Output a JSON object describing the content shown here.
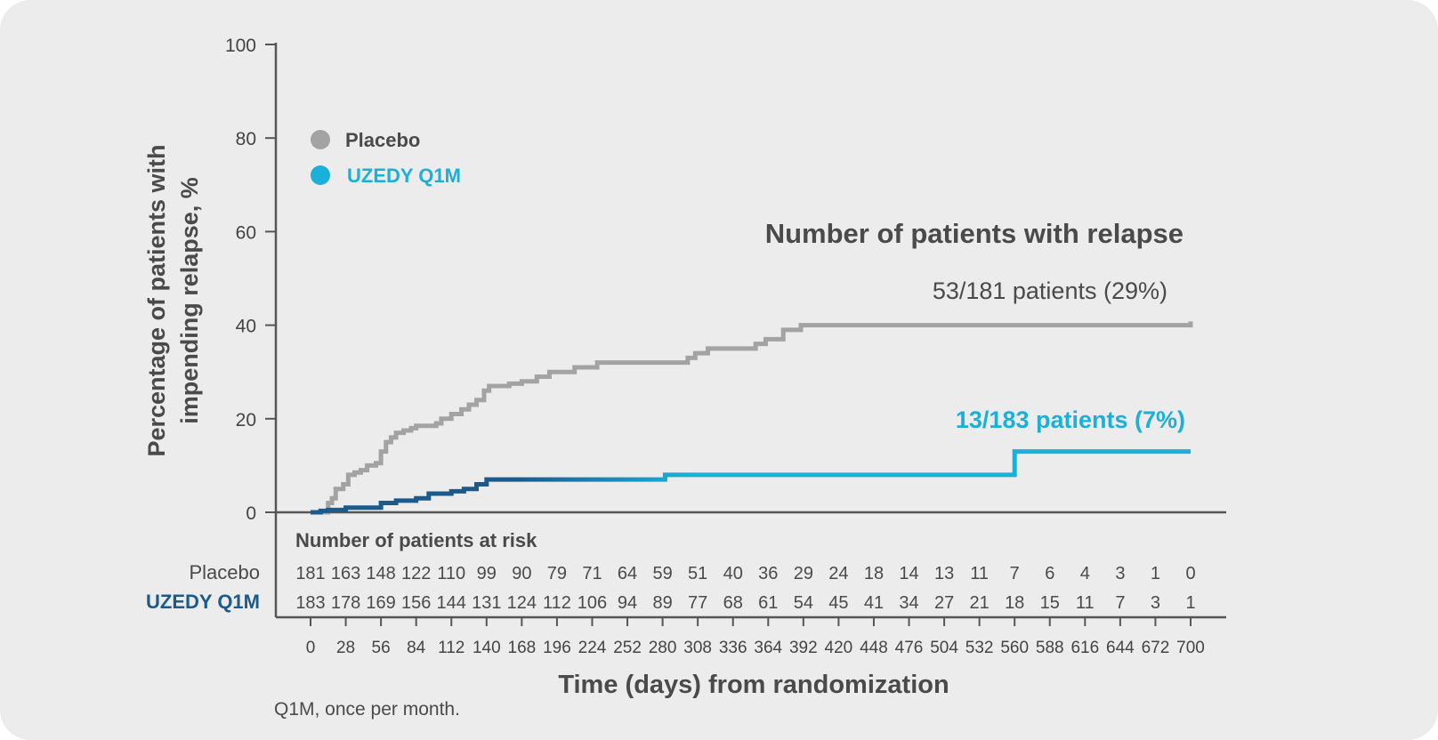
{
  "chart_data": {
    "type": "line",
    "subtype": "kaplan-meier step curve",
    "ylabel_line1": "Percentage of patients with",
    "ylabel_line2": "impending relapse, %",
    "xlabel": "Time (days) from randomization",
    "ylim": [
      0,
      100
    ],
    "yticks": [
      0,
      20,
      40,
      60,
      80,
      100
    ],
    "xlim": [
      0,
      700
    ],
    "xticks": [
      0,
      28,
      56,
      84,
      112,
      140,
      168,
      196,
      224,
      252,
      280,
      308,
      336,
      364,
      392,
      420,
      448,
      476,
      504,
      532,
      560,
      588,
      616,
      644,
      672,
      700
    ],
    "legend_placement": "top-left",
    "colors": {
      "placebo": "#a3a3a3",
      "uzedy": "#1ab0da",
      "uzedy_dark": "#1d5a8c",
      "axis": "#555555",
      "text": "#4a4a4a"
    },
    "series": [
      {
        "name": "Placebo",
        "steps": [
          [
            0,
            0
          ],
          [
            14,
            2
          ],
          [
            17,
            3
          ],
          [
            20,
            5
          ],
          [
            26,
            6
          ],
          [
            30,
            8
          ],
          [
            35,
            8.5
          ],
          [
            40,
            9
          ],
          [
            45,
            10
          ],
          [
            52,
            10.5
          ],
          [
            56,
            13
          ],
          [
            60,
            15
          ],
          [
            64,
            16
          ],
          [
            68,
            17
          ],
          [
            74,
            17.5
          ],
          [
            80,
            18
          ],
          [
            84,
            18.5
          ],
          [
            100,
            19
          ],
          [
            104,
            20
          ],
          [
            112,
            21
          ],
          [
            120,
            22
          ],
          [
            126,
            23
          ],
          [
            132,
            24
          ],
          [
            138,
            26
          ],
          [
            142,
            27
          ],
          [
            158,
            27.5
          ],
          [
            168,
            28
          ],
          [
            180,
            29
          ],
          [
            190,
            30
          ],
          [
            210,
            31
          ],
          [
            228,
            32
          ],
          [
            300,
            33
          ],
          [
            306,
            34
          ],
          [
            316,
            35
          ],
          [
            354,
            36
          ],
          [
            362,
            37
          ],
          [
            376,
            39
          ],
          [
            390,
            40
          ],
          [
            700,
            40.8
          ]
        ]
      },
      {
        "name": "UZEDY Q1M",
        "steps": [
          [
            0,
            0
          ],
          [
            8,
            0.3
          ],
          [
            14,
            0.5
          ],
          [
            28,
            1
          ],
          [
            56,
            2
          ],
          [
            68,
            2.5
          ],
          [
            84,
            3
          ],
          [
            94,
            4
          ],
          [
            112,
            4.5
          ],
          [
            122,
            5
          ],
          [
            132,
            6
          ],
          [
            140,
            7
          ],
          [
            280,
            7
          ],
          [
            282,
            8
          ],
          [
            557,
            8
          ],
          [
            560,
            13
          ],
          [
            700,
            13
          ]
        ]
      }
    ],
    "annotations": {
      "heading": "Number of patients with relapse",
      "placebo_result": "53/181 patients (29%)",
      "uzedy_result": "13/183 patients (7%)"
    },
    "risk_table": {
      "title": "Number of patients at risk",
      "rows": [
        {
          "label": "Placebo",
          "values": [
            "181",
            "163",
            "148",
            "122",
            "110",
            "99",
            "90",
            "79",
            "71",
            "64",
            "59",
            "51",
            "40",
            "36",
            "29",
            "24",
            "18",
            "14",
            "13",
            "11",
            "7",
            "6",
            "4",
            "3",
            "1",
            "0"
          ]
        },
        {
          "label": "UZEDY Q1M",
          "values": [
            "183",
            "178",
            "169",
            "156",
            "144",
            "131",
            "124",
            "112",
            "106",
            "94",
            "89",
            "77",
            "68",
            "61",
            "54",
            "45",
            "41",
            "34",
            "27",
            "21",
            "18",
            "15",
            "11",
            "7",
            "3",
            "1"
          ]
        }
      ]
    }
  },
  "footnote": "Q1M, once per month."
}
